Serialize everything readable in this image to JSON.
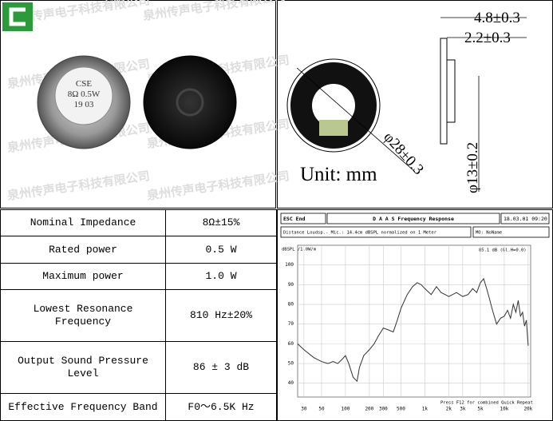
{
  "photo": {
    "watermark": "泉州传声电子科技有限公司",
    "speaker_print": [
      "CSE",
      "8Ω 0.5W",
      "19 03"
    ]
  },
  "drawing": {
    "depth": "4.8±0.3",
    "flange": "2.2±0.3",
    "outer_diameter": "φ28±0.3",
    "inner_diameter": "φ13±0.2",
    "unit": "Unit: mm"
  },
  "table": {
    "rows": [
      [
        "Nominal Impedance",
        "8Ω±15%"
      ],
      [
        "Rated power",
        "0.5 W"
      ],
      [
        "Maximum power",
        "1.0 W"
      ],
      [
        "Lowest Resonance Frequency",
        "810 Hz±20%"
      ],
      [
        "Output Sound Pressure Level",
        "86 ± 3 dB"
      ],
      [
        "Effective Frequency Band",
        "F0～6.5K Hz"
      ]
    ]
  },
  "chart_data": {
    "type": "line",
    "header": {
      "left": "ESC End",
      "title": "D A A S  Frequency Response",
      "date": "18.03.01 09:20",
      "info": "Distance Loudsp.- Mic.: 14.4cm dBSPL normalized on 1 Meter",
      "model": "MO: NoName"
    },
    "y_label": "dBSPL /1.0W/m",
    "annotation": "85.1 dB (Gl.H=0.0)",
    "footer": "Press F12 for combined Quick Repeat",
    "log_x": true,
    "grid": true,
    "xlim": [
      25,
      21500
    ],
    "ylim": [
      33,
      110
    ],
    "xticks": [
      30,
      50,
      100,
      200,
      300,
      500,
      {
        "value": 1000,
        "label": "1k"
      },
      {
        "value": 2000,
        "label": "2k"
      },
      {
        "value": 3000,
        "label": "3k"
      },
      {
        "value": 5000,
        "label": "5k"
      },
      {
        "value": 10000,
        "label": "10k"
      },
      {
        "value": 20000,
        "label": "20k"
      }
    ],
    "yticks": [
      40,
      50,
      60,
      70,
      80,
      90,
      100
    ],
    "x": [
      25,
      30,
      40,
      50,
      60,
      70,
      80,
      90,
      100,
      110,
      125,
      140,
      150,
      170,
      200,
      230,
      260,
      300,
      350,
      400,
      450,
      500,
      600,
      700,
      800,
      900,
      1000,
      1200,
      1400,
      1600,
      1800,
      2000,
      2500,
      3000,
      3500,
      4000,
      4500,
      5000,
      5500,
      6000,
      6500,
      7000,
      8000,
      9000,
      10000,
      11000,
      12000,
      13000,
      14000,
      15000,
      16000,
      17000,
      18000,
      19000,
      20000
    ],
    "series": [
      {
        "color": "#333333",
        "values": [
          60,
          57,
          53,
          51,
          50,
          51,
          50,
          52,
          54,
          50,
          43,
          41,
          48,
          54,
          57,
          60,
          64,
          68,
          67,
          66,
          72,
          78,
          85,
          89,
          91,
          90,
          88,
          85,
          89,
          86,
          85,
          84,
          86,
          84,
          85,
          88,
          86,
          91,
          93,
          88,
          83,
          78,
          70,
          73,
          74,
          77,
          73,
          80,
          76,
          82,
          74,
          76,
          69,
          72,
          59
        ]
      }
    ]
  }
}
